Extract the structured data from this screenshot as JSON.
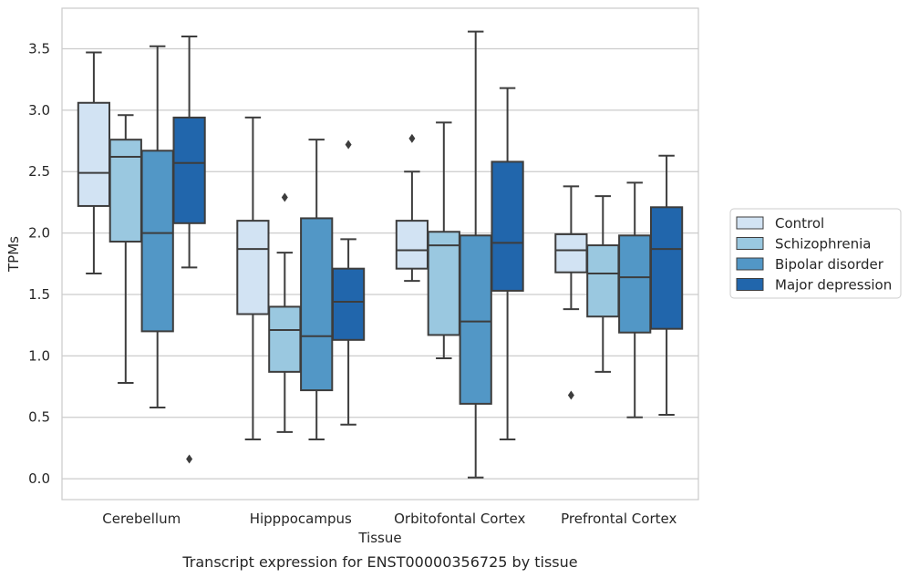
{
  "chart_data": {
    "type": "box",
    "xlabel": "Tissue",
    "ylabel": "TPMs",
    "caption": "Transcript expression for ENST00000356725 by tissue",
    "ylim": [
      -0.17,
      3.83
    ],
    "yticks": [
      "0.0",
      "0.5",
      "1.0",
      "1.5",
      "2.0",
      "2.5",
      "3.0",
      "3.5"
    ],
    "grid": "horizontal",
    "legend_position": "right",
    "categories": [
      "Cerebellum",
      "Hipppocampus",
      "Orbitofontal Cortex",
      "Prefrontal Cortex"
    ],
    "series": [
      {
        "name": "Control",
        "color": "#d2e3f3",
        "boxes": [
          {
            "whislo": 1.67,
            "q1": 2.22,
            "med": 2.49,
            "q3": 3.06,
            "whishi": 3.47,
            "fliers": []
          },
          {
            "whislo": 0.32,
            "q1": 1.34,
            "med": 1.87,
            "q3": 2.1,
            "whishi": 2.94,
            "fliers": []
          },
          {
            "whislo": 1.61,
            "q1": 1.71,
            "med": 1.86,
            "q3": 2.1,
            "whishi": 2.5,
            "fliers": [
              2.77
            ]
          },
          {
            "whislo": 1.38,
            "q1": 1.68,
            "med": 1.86,
            "q3": 1.99,
            "whishi": 2.38,
            "fliers": [
              0.68
            ]
          }
        ]
      },
      {
        "name": "Schizophrenia",
        "color": "#9ac8e0",
        "boxes": [
          {
            "whislo": 0.78,
            "q1": 1.93,
            "med": 2.62,
            "q3": 2.76,
            "whishi": 2.96,
            "fliers": []
          },
          {
            "whislo": 0.38,
            "q1": 0.87,
            "med": 1.21,
            "q3": 1.4,
            "whishi": 1.84,
            "fliers": [
              2.29
            ]
          },
          {
            "whislo": 0.98,
            "q1": 1.17,
            "med": 1.9,
            "q3": 2.01,
            "whishi": 2.9,
            "fliers": []
          },
          {
            "whislo": 0.87,
            "q1": 1.32,
            "med": 1.67,
            "q3": 1.9,
            "whishi": 2.3,
            "fliers": []
          }
        ]
      },
      {
        "name": "Bipolar disorder",
        "color": "#5297c6",
        "boxes": [
          {
            "whislo": 0.58,
            "q1": 1.2,
            "med": 2.0,
            "q3": 2.67,
            "whishi": 3.52,
            "fliers": []
          },
          {
            "whislo": 0.32,
            "q1": 0.72,
            "med": 1.16,
            "q3": 2.12,
            "whishi": 2.76,
            "fliers": []
          },
          {
            "whislo": 0.01,
            "q1": 0.61,
            "med": 1.28,
            "q3": 1.98,
            "whishi": 3.64,
            "fliers": []
          },
          {
            "whislo": 0.5,
            "q1": 1.19,
            "med": 1.64,
            "q3": 1.98,
            "whishi": 2.41,
            "fliers": []
          }
        ]
      },
      {
        "name": "Major depression",
        "color": "#2166ac",
        "boxes": [
          {
            "whislo": 1.72,
            "q1": 2.08,
            "med": 2.57,
            "q3": 2.94,
            "whishi": 3.6,
            "fliers": [
              0.16
            ]
          },
          {
            "whislo": 0.44,
            "q1": 1.13,
            "med": 1.44,
            "q3": 1.71,
            "whishi": 1.95,
            "fliers": [
              2.72
            ]
          },
          {
            "whislo": 0.32,
            "q1": 1.53,
            "med": 1.92,
            "q3": 2.58,
            "whishi": 3.18,
            "fliers": []
          },
          {
            "whislo": 0.52,
            "q1": 1.22,
            "med": 1.87,
            "q3": 2.21,
            "whishi": 2.63,
            "fliers": []
          }
        ]
      }
    ]
  }
}
